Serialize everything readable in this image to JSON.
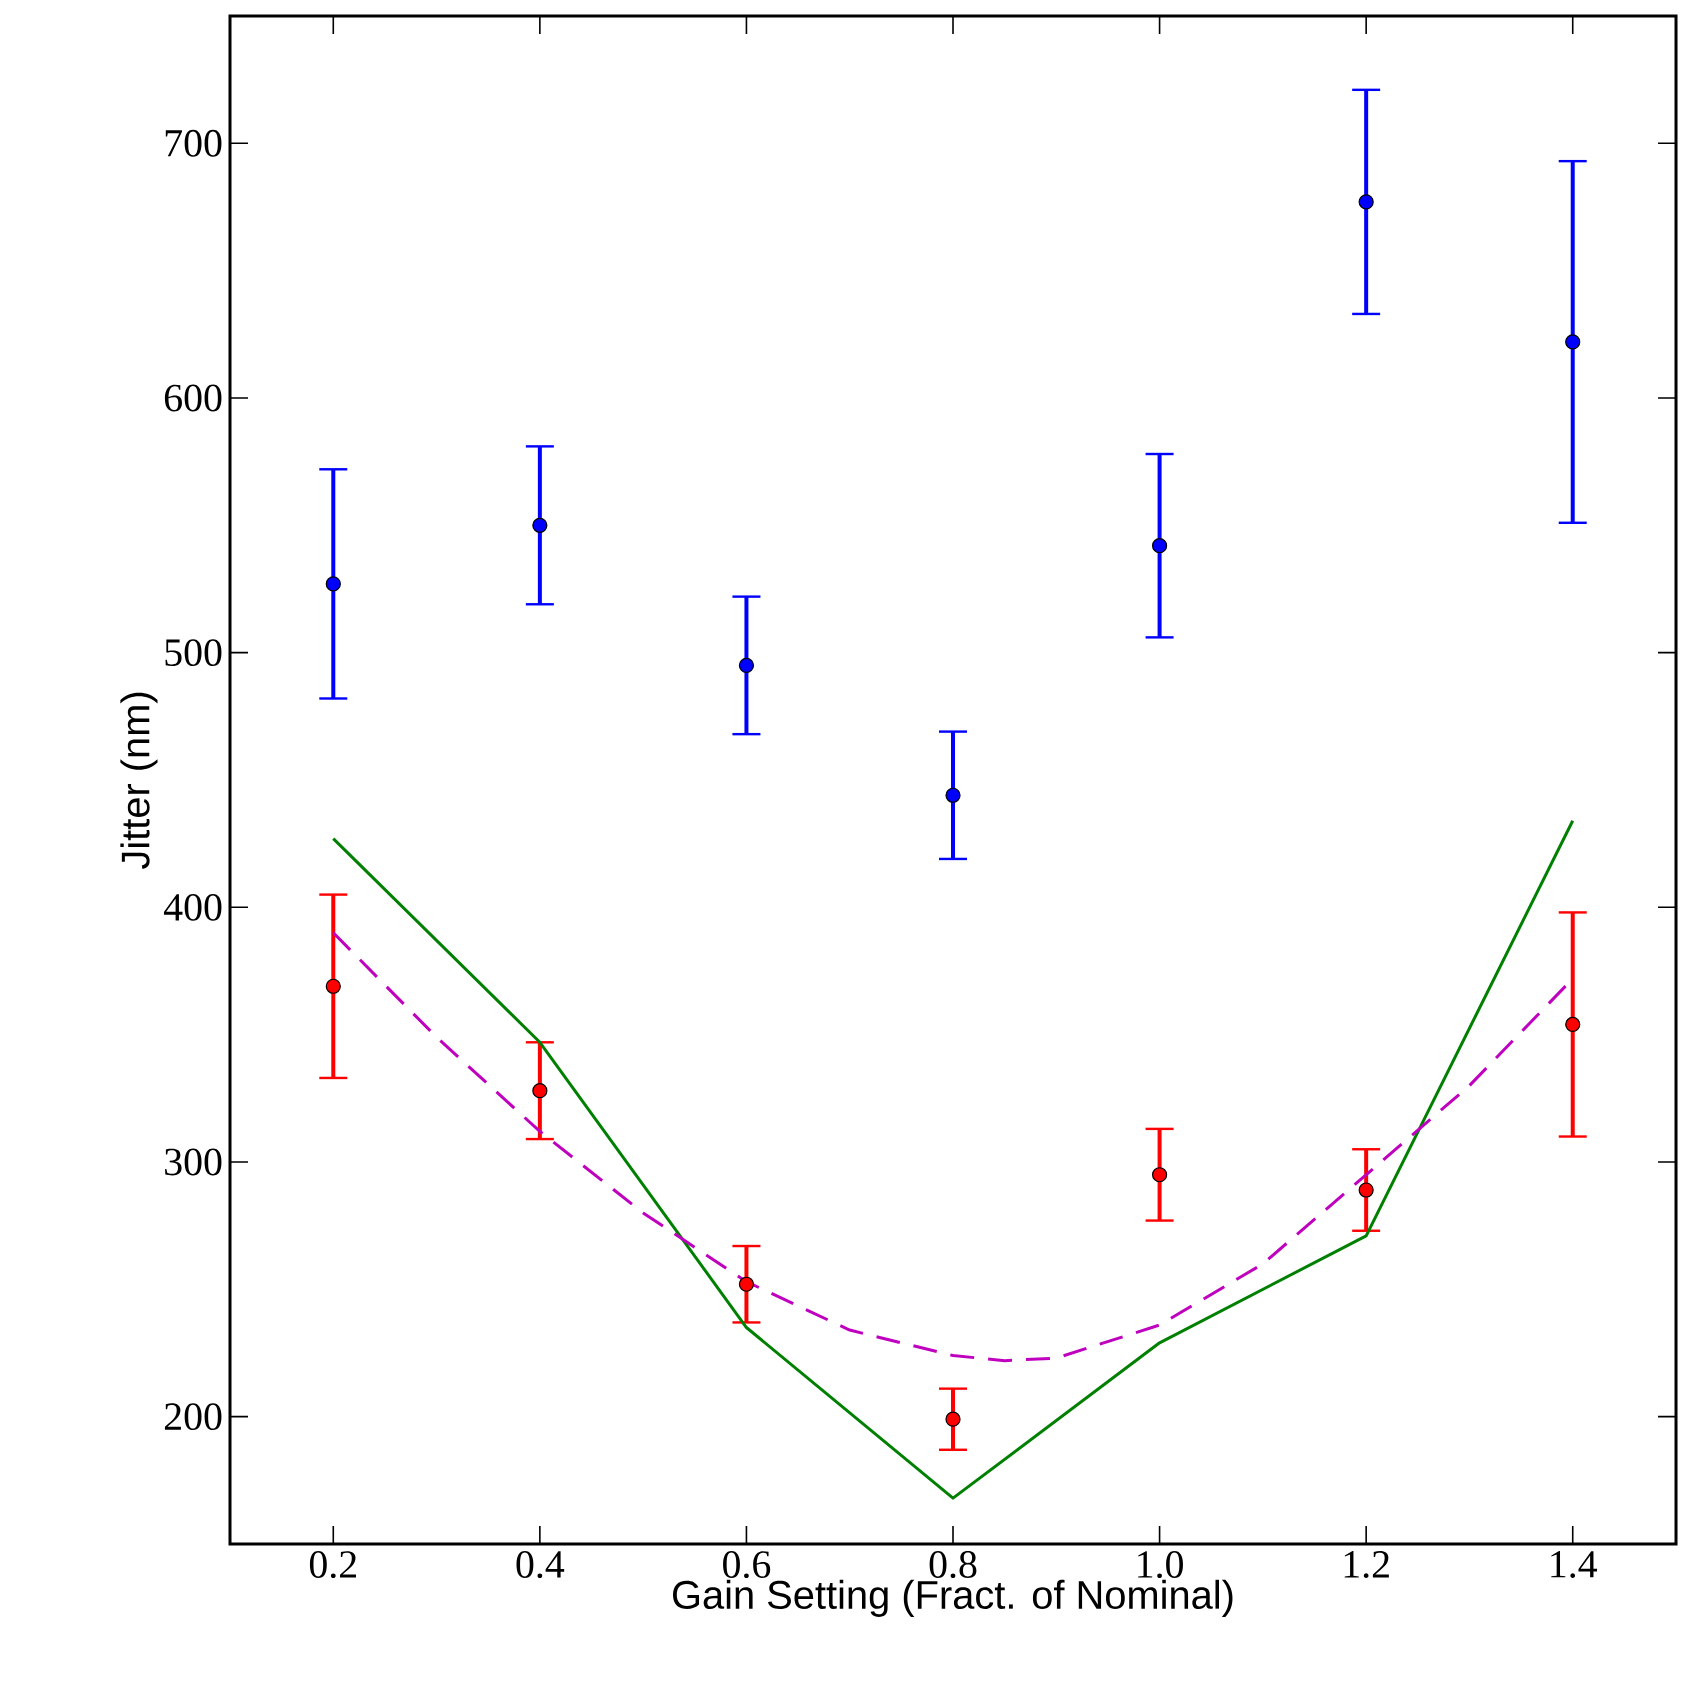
{
  "chart_data": {
    "type": "scatter",
    "xlabel": "Gain Setting (Fract. of Nominal)",
    "ylabel": "Jitter (nm)",
    "xlim": [
      0.1,
      1.5
    ],
    "ylim": [
      150,
      750
    ],
    "xticks": [
      {
        "value": 0.2,
        "label": "0.2"
      },
      {
        "value": 0.4,
        "label": "0.4"
      },
      {
        "value": 0.6,
        "label": "0.6"
      },
      {
        "value": 0.8,
        "label": "0.8"
      },
      {
        "value": 1.0,
        "label": "1.0"
      },
      {
        "value": 1.2,
        "label": "1.2"
      },
      {
        "value": 1.4,
        "label": "1.4"
      }
    ],
    "yticks": [
      200,
      300,
      400,
      500,
      600,
      700
    ],
    "grid": false,
    "marker": "circle",
    "series": [
      {
        "color": "#0000ff",
        "x": [
          0.2,
          0.4,
          0.6,
          0.8,
          1.0,
          1.2,
          1.4
        ],
        "values": [
          527,
          550,
          495,
          444,
          542,
          677,
          622
        ],
        "errors": [
          45,
          31,
          27,
          25,
          36,
          44,
          71
        ]
      },
      {
        "color": "#ff0000",
        "x": [
          0.2,
          0.4,
          0.6,
          0.8,
          1.0,
          1.2,
          1.4
        ],
        "values": [
          369,
          328,
          252,
          199,
          295,
          289,
          354
        ],
        "errors": [
          36,
          19,
          15,
          12,
          18,
          16,
          44
        ]
      },
      {
        "type": "line",
        "color": "#008000",
        "marker": "none",
        "line_style": "solid",
        "x": [
          0.2,
          0.4,
          0.6,
          0.8,
          1.0,
          1.2,
          1.4
        ],
        "values": [
          427,
          347,
          235,
          168,
          229,
          271,
          434
        ]
      },
      {
        "type": "line",
        "color": "#bf00bf",
        "marker": "none",
        "line_style": "dashed",
        "x": [
          0.2,
          0.3,
          0.4,
          0.5,
          0.6,
          0.7,
          0.8,
          0.85,
          0.9,
          1.0,
          1.1,
          1.2,
          1.3,
          1.4
        ],
        "values": [
          390,
          349,
          312,
          280,
          253,
          234,
          224,
          222,
          223,
          236,
          260,
          295,
          330,
          372
        ]
      }
    ]
  }
}
